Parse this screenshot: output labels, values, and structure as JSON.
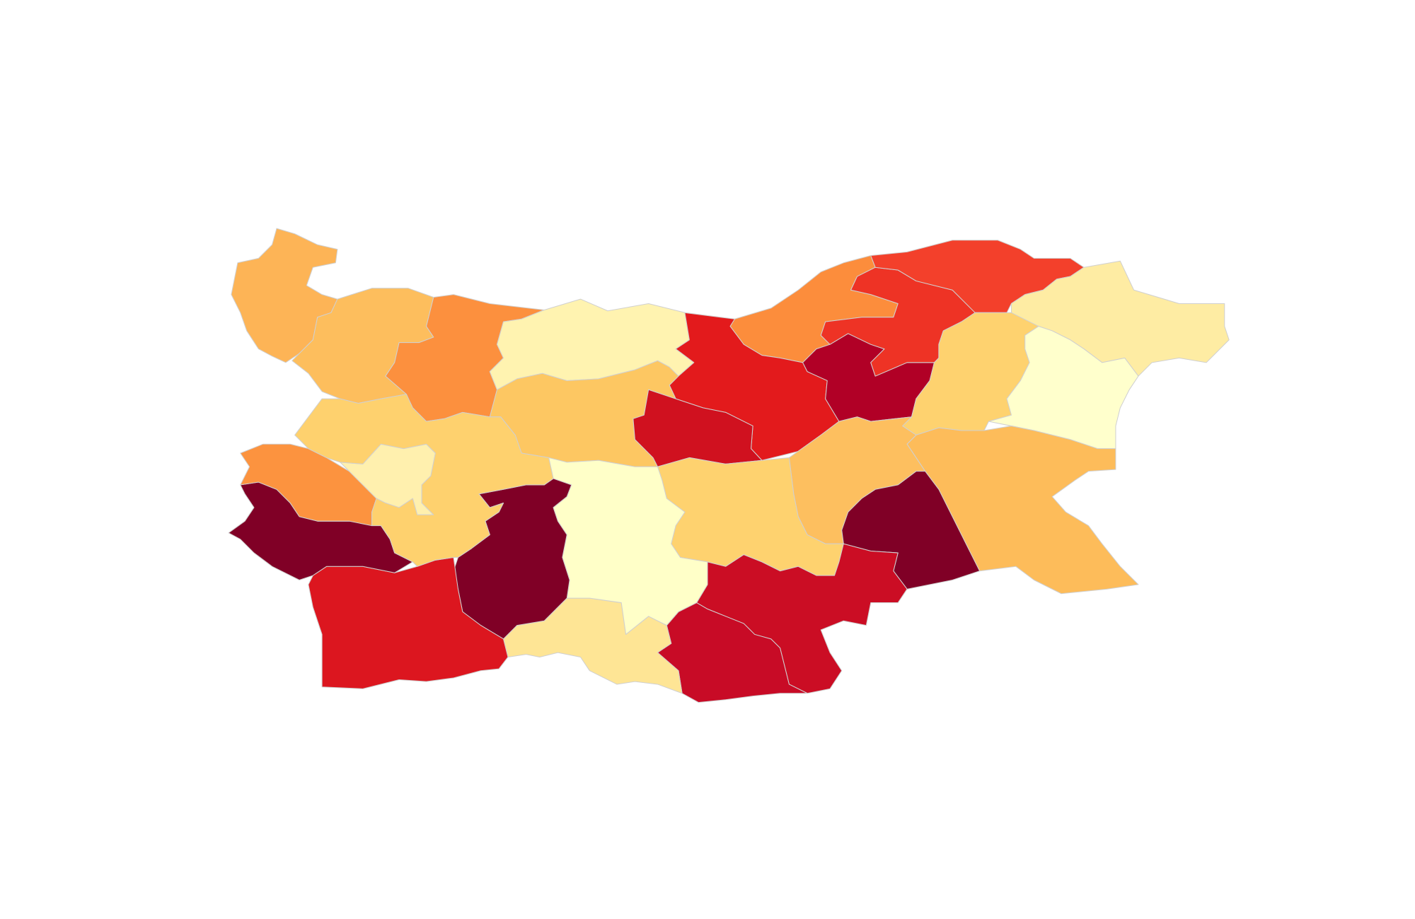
{
  "map": {
    "type": "choropleth",
    "country": "Bulgaria",
    "color_scale": "YlOrRd",
    "border_color": "#d0d0d0",
    "background": "#ffffff",
    "regions": [
      {
        "id": "r01",
        "color": "#fdb456"
      },
      {
        "id": "r02",
        "color": "#fdbe5d"
      },
      {
        "id": "r03",
        "color": "#fc903e"
      },
      {
        "id": "r04",
        "color": "#fff3b0"
      },
      {
        "id": "r05",
        "color": "#fc8d3c"
      },
      {
        "id": "r06",
        "color": "#e31a1c"
      },
      {
        "id": "r07",
        "color": "#fdc762"
      },
      {
        "id": "r08",
        "color": "#d0111f"
      },
      {
        "id": "r09",
        "color": "#b10026"
      },
      {
        "id": "r10",
        "color": "#ee3325"
      },
      {
        "id": "r11",
        "color": "#f3402b"
      },
      {
        "id": "r12",
        "color": "#feeca3"
      },
      {
        "id": "r13",
        "color": "#fed26f"
      },
      {
        "id": "r14",
        "color": "#ffffcc"
      },
      {
        "id": "r15",
        "color": "#fdbc5a"
      },
      {
        "id": "r16",
        "color": "#fdbf5f"
      },
      {
        "id": "r17",
        "color": "#800026"
      },
      {
        "id": "r18",
        "color": "#fed26f"
      },
      {
        "id": "r19",
        "color": "#cb0d24"
      },
      {
        "id": "r20",
        "color": "#c80b26"
      },
      {
        "id": "r21",
        "color": "#fee595"
      },
      {
        "id": "r22",
        "color": "#ffffc8"
      },
      {
        "id": "r23",
        "color": "#800026"
      },
      {
        "id": "r24",
        "color": "#dc161f"
      },
      {
        "id": "r25",
        "color": "#800026"
      },
      {
        "id": "r26",
        "color": "#fc933f"
      },
      {
        "id": "r27",
        "color": "#fff0ae"
      },
      {
        "id": "r28",
        "color": "#fed16e"
      }
    ]
  }
}
